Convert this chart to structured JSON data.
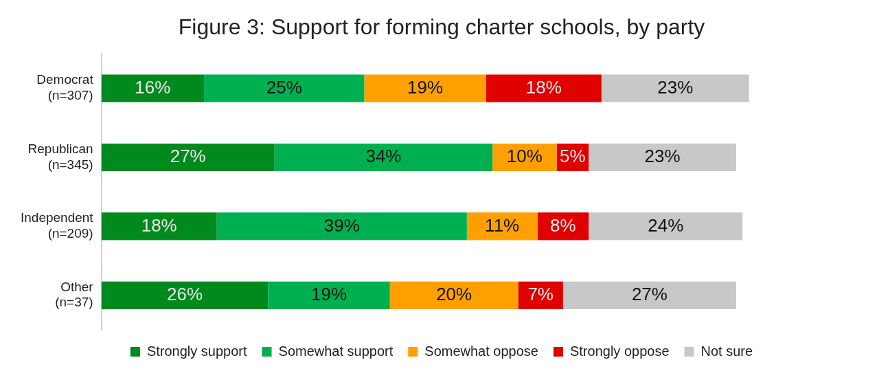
{
  "chart_data": {
    "type": "bar",
    "orientation": "horizontal",
    "stacked": true,
    "title": "Figure 3: Support for forming charter schools, by party",
    "categories": [
      "Democrat\n(n=307)",
      "Republican\n(n=345)",
      "Independent\n(n=209)",
      "Other\n(n=37)"
    ],
    "series": [
      {
        "name": "Strongly support",
        "color": "#008a1e",
        "values": [
          16,
          27,
          18,
          26
        ],
        "value_labels": [
          "16%",
          "27%",
          "18%",
          "26%"
        ]
      },
      {
        "name": "Somewhat support",
        "color": "#00b050",
        "values": [
          25,
          34,
          39,
          19
        ],
        "value_labels": [
          "25%",
          "34%",
          "39%",
          "19%"
        ]
      },
      {
        "name": "Somewhat oppose",
        "color": "#ffa000",
        "values": [
          19,
          10,
          11,
          20
        ],
        "value_labels": [
          "19%",
          "10%",
          "11%",
          "20%"
        ]
      },
      {
        "name": "Strongly oppose",
        "color": "#e00000",
        "values": [
          18,
          5,
          8,
          7
        ],
        "value_labels": [
          "18%",
          "5%",
          "8%",
          "7%"
        ]
      },
      {
        "name": "Not sure",
        "color": "#c8c8c8",
        "values": [
          23,
          23,
          24,
          27
        ],
        "value_labels": [
          "23%",
          "23%",
          "24%",
          "27%"
        ]
      }
    ],
    "grid": false,
    "legend": "bottom"
  }
}
